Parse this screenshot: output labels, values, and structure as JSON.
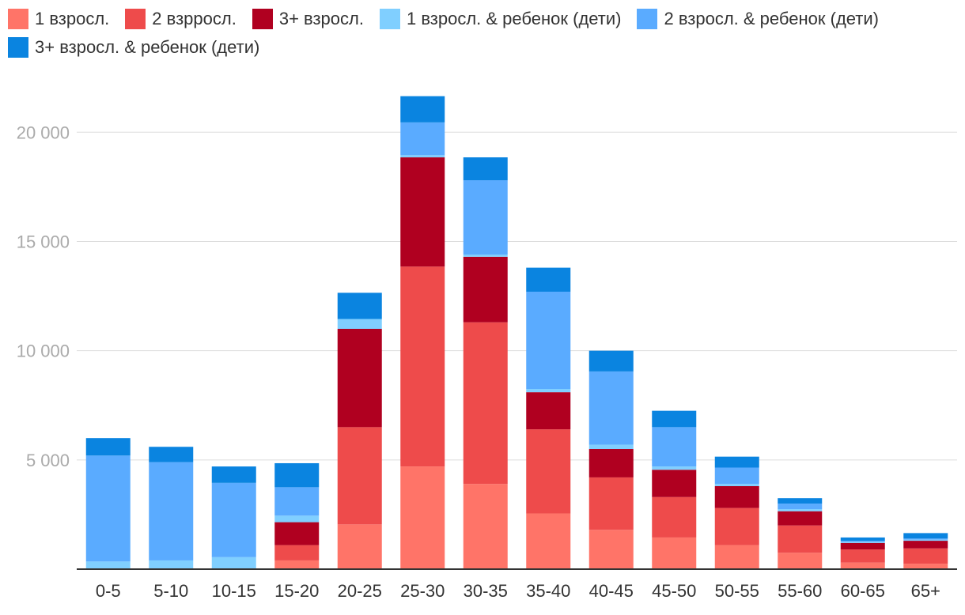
{
  "colors": {
    "axis": "#333333",
    "grid": "#dddddd",
    "ytick_text": "#aaaaaa",
    "xtick_text": "#333333"
  },
  "chart_data": {
    "type": "bar",
    "stacked": true,
    "title": "",
    "xlabel": "",
    "ylabel": "",
    "ylim": [
      0,
      22000
    ],
    "yticks": [
      5000,
      10000,
      15000,
      20000
    ],
    "ytick_labels": [
      "5 000",
      "10 000",
      "15 000",
      "20 000"
    ],
    "legend_position": "top-left",
    "categories": [
      "0-5",
      "5-10",
      "10-15",
      "15-20",
      "20-25",
      "25-30",
      "30-35",
      "35-40",
      "40-45",
      "45-50",
      "50-55",
      "55-60",
      "60-65",
      "65+"
    ],
    "series": [
      {
        "name": "1 взросл.",
        "color": "#ff7468",
        "values": [
          0,
          0,
          0,
          400,
          2050,
          4700,
          3900,
          2550,
          1800,
          1450,
          1100,
          750,
          300,
          250
        ]
      },
      {
        "name": "2 взрросл.",
        "color": "#ee4b4b",
        "values": [
          0,
          0,
          0,
          700,
          4450,
          9150,
          7400,
          3850,
          2400,
          1850,
          1700,
          1250,
          600,
          700
        ]
      },
      {
        "name": "3+ взросл.",
        "color": "#b00020",
        "values": [
          0,
          0,
          0,
          1050,
          4500,
          5000,
          3000,
          1700,
          1300,
          1250,
          1000,
          650,
          300,
          350
        ]
      },
      {
        "name": "1 взросл. & ребенок (дети)",
        "color": "#80cfff",
        "values": [
          350,
          400,
          550,
          300,
          450,
          100,
          100,
          150,
          200,
          150,
          100,
          100,
          50,
          50
        ]
      },
      {
        "name": "2 взросл. & ребенок (дети)",
        "color": "#5aabff",
        "values": [
          4850,
          4500,
          3400,
          1300,
          0,
          1500,
          3400,
          4450,
          3350,
          1800,
          750,
          250,
          50,
          50
        ]
      },
      {
        "name": "3+ взросл. & ребенок (дети)",
        "color": "#0a84e0",
        "values": [
          800,
          700,
          750,
          1100,
          1200,
          1200,
          1050,
          1100,
          950,
          750,
          500,
          250,
          150,
          250
        ]
      }
    ]
  }
}
